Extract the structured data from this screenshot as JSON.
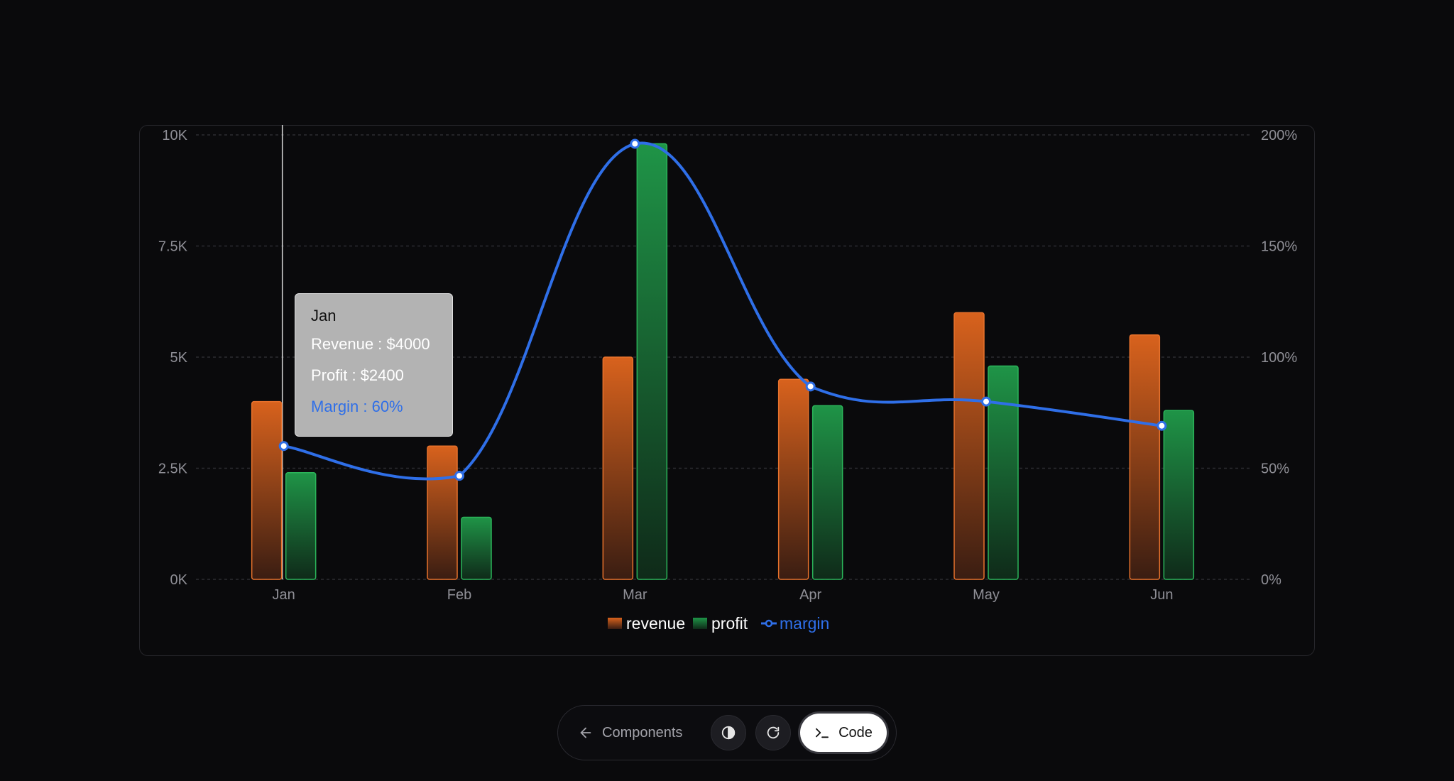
{
  "chart_data": {
    "type": "bar",
    "categories": [
      "Jan",
      "Feb",
      "Mar",
      "Apr",
      "May",
      "Jun"
    ],
    "series": [
      {
        "name": "revenue",
        "kind": "bar",
        "axis": "left",
        "values": [
          4000,
          3000,
          5000,
          4500,
          6000,
          5500
        ],
        "color": "#d4601c"
      },
      {
        "name": "profit",
        "kind": "bar",
        "axis": "left",
        "values": [
          2400,
          1398,
          9800,
          3908,
          4800,
          3800
        ],
        "color": "#1f9a4a"
      },
      {
        "name": "margin",
        "kind": "line",
        "axis": "right",
        "values": [
          60,
          46.6,
          196,
          86.8,
          80,
          69.1
        ],
        "color": "#2f6fe8"
      }
    ],
    "y_left": {
      "ticks": [
        "10K",
        "7.5K",
        "5K",
        "2.5K",
        "0K"
      ],
      "tick_values": [
        10000,
        7500,
        5000,
        2500,
        0
      ],
      "range": [
        0,
        10000
      ]
    },
    "y_right": {
      "ticks": [
        "200%",
        "150%",
        "100%",
        "50%",
        "0%"
      ],
      "tick_values": [
        200,
        150,
        100,
        50,
        0
      ],
      "range": [
        0,
        200
      ]
    },
    "grid": "horizontal-dashed",
    "legend_position": "bottom-center",
    "active_category": "Jan"
  },
  "tooltip": {
    "title": "Jan",
    "revenue": "Revenue : $4000",
    "profit": "Profit : $2400",
    "margin": "Margin : 60%"
  },
  "toolbar": {
    "back_label": "Components",
    "back_icon": "arrow-left-icon",
    "theme_icon": "contrast-icon",
    "refresh_icon": "refresh-icon",
    "code_label": "Code",
    "code_icon": "terminal-icon"
  }
}
